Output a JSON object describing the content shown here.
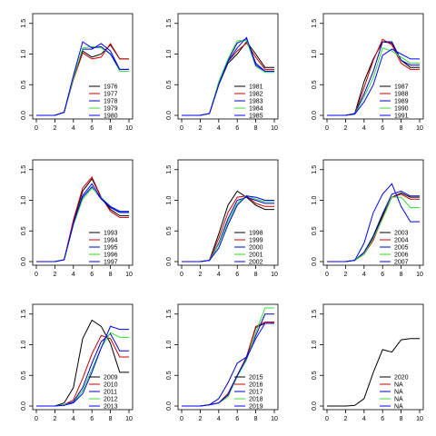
{
  "chart_data": {
    "type": "line",
    "layout": "3x3 grid of small-multiple line charts",
    "colors": [
      "#000000",
      "#cc0000",
      "#0000cc",
      "#33dd33",
      "#0000ff"
    ],
    "x_ticks": [
      "0",
      "2",
      "4",
      "6",
      "8",
      "10"
    ],
    "y_ticks": [
      "0.0",
      "0.5",
      "1.0",
      "1.5"
    ],
    "xlim": [
      0,
      10
    ],
    "ylim": [
      0,
      1.6
    ],
    "legend_position": "bottom-right",
    "x": [
      0,
      1,
      2,
      3,
      4,
      5,
      6,
      7,
      8,
      9,
      10
    ],
    "panels": [
      {
        "series": [
          {
            "name": "1976",
            "color": "#000000",
            "values": [
              0,
              0,
              0,
              0.05,
              0.6,
              1.05,
              0.95,
              1.0,
              1.15,
              0.92,
              0.92
            ]
          },
          {
            "name": "1977",
            "color": "#cc0000",
            "values": [
              0,
              0,
              0,
              0.05,
              0.58,
              1.02,
              0.92,
              0.95,
              1.17,
              0.92,
              0.92
            ]
          },
          {
            "name": "1978",
            "color": "#0000cc",
            "values": [
              0,
              0,
              0,
              0.05,
              0.62,
              1.08,
              1.08,
              1.17,
              1.05,
              0.75,
              0.75
            ]
          },
          {
            "name": "1979",
            "color": "#33dd33",
            "values": [
              0,
              0,
              0,
              0.05,
              0.6,
              1.1,
              1.12,
              1.1,
              1.0,
              0.72,
              0.72
            ]
          },
          {
            "name": "1980",
            "color": "#0000ff",
            "values": [
              0,
              0,
              0,
              0.05,
              0.65,
              1.2,
              1.1,
              1.12,
              1.0,
              0.75,
              0.75
            ]
          }
        ]
      },
      {
        "series": [
          {
            "name": "1981",
            "color": "#000000",
            "values": [
              0,
              0,
              0,
              0.03,
              0.5,
              0.85,
              1.0,
              1.2,
              1.0,
              0.78,
              0.78
            ]
          },
          {
            "name": "1982",
            "color": "#cc0000",
            "values": [
              0,
              0,
              0,
              0.03,
              0.5,
              0.88,
              1.05,
              1.18,
              0.95,
              0.75,
              0.75
            ]
          },
          {
            "name": "1983",
            "color": "#0000cc",
            "values": [
              0,
              0,
              0,
              0.03,
              0.52,
              0.9,
              1.18,
              1.25,
              0.85,
              0.72,
              0.72
            ]
          },
          {
            "name": "1984",
            "color": "#33dd33",
            "values": [
              0,
              0,
              0,
              0.03,
              0.55,
              0.92,
              1.22,
              1.22,
              0.8,
              0.7,
              0.7
            ]
          },
          {
            "name": "1985",
            "color": "#0000ff",
            "values": [
              0,
              0,
              0,
              0.03,
              0.5,
              0.88,
              1.1,
              1.27,
              0.82,
              0.72,
              0.72
            ]
          }
        ]
      },
      {
        "series": [
          {
            "name": "1987",
            "color": "#000000",
            "values": [
              0,
              0,
              0,
              0.03,
              0.55,
              0.92,
              1.2,
              1.18,
              0.9,
              0.78,
              0.78
            ]
          },
          {
            "name": "1988",
            "color": "#cc0000",
            "values": [
              0,
              0,
              0,
              0.03,
              0.45,
              0.9,
              1.24,
              1.15,
              0.85,
              0.75,
              0.75
            ]
          },
          {
            "name": "1989",
            "color": "#0000cc",
            "values": [
              0,
              0,
              0,
              0.03,
              0.35,
              0.72,
              1.2,
              1.2,
              0.9,
              0.82,
              0.82
            ]
          },
          {
            "name": "1990",
            "color": "#33dd33",
            "values": [
              0,
              0,
              0,
              0.02,
              0.3,
              0.62,
              1.1,
              1.05,
              0.95,
              0.85,
              0.85
            ]
          },
          {
            "name": "1991",
            "color": "#0000ff",
            "values": [
              0,
              0,
              0,
              0.02,
              0.22,
              0.5,
              0.98,
              1.08,
              1.0,
              0.92,
              0.92
            ]
          }
        ]
      },
      {
        "series": [
          {
            "name": "1993",
            "color": "#000000",
            "values": [
              0,
              0,
              0,
              0.03,
              0.65,
              1.15,
              1.35,
              1.05,
              0.85,
              0.75,
              0.75
            ]
          },
          {
            "name": "1994",
            "color": "#cc0000",
            "values": [
              0,
              0,
              0,
              0.03,
              0.68,
              1.2,
              1.38,
              1.05,
              0.82,
              0.72,
              0.72
            ]
          },
          {
            "name": "1995",
            "color": "#0000cc",
            "values": [
              0,
              0,
              0,
              0.03,
              0.6,
              1.05,
              1.22,
              1.02,
              0.88,
              0.8,
              0.8
            ]
          },
          {
            "name": "1996",
            "color": "#33dd33",
            "values": [
              0,
              0,
              0,
              0.03,
              0.6,
              1.02,
              1.2,
              1.05,
              0.9,
              0.82,
              0.82
            ]
          },
          {
            "name": "1997",
            "color": "#0000ff",
            "values": [
              0,
              0,
              0,
              0.03,
              0.62,
              1.08,
              1.27,
              1.03,
              0.9,
              0.82,
              0.82
            ]
          }
        ]
      },
      {
        "series": [
          {
            "name": "1998",
            "color": "#000000",
            "values": [
              0,
              0,
              0,
              0.02,
              0.45,
              0.92,
              1.15,
              1.05,
              0.92,
              0.85,
              0.85
            ]
          },
          {
            "name": "1999",
            "color": "#cc0000",
            "values": [
              0,
              0,
              0,
              0.02,
              0.38,
              0.8,
              1.05,
              1.07,
              0.95,
              0.9,
              0.9
            ]
          },
          {
            "name": "2000",
            "color": "#0000cc",
            "values": [
              0,
              0,
              0,
              0.02,
              0.3,
              0.7,
              1.0,
              1.05,
              1.0,
              0.95,
              0.95
            ]
          },
          {
            "name": "2001",
            "color": "#33dd33",
            "values": [
              0,
              0,
              0,
              0.02,
              0.28,
              0.65,
              0.95,
              1.08,
              1.02,
              0.98,
              0.98
            ]
          },
          {
            "name": "2002",
            "color": "#0000ff",
            "values": [
              0,
              0,
              0,
              0.02,
              0.22,
              0.6,
              0.92,
              1.07,
              1.05,
              1.0,
              1.0
            ]
          }
        ]
      },
      {
        "series": [
          {
            "name": "2003",
            "color": "#000000",
            "values": [
              0,
              0,
              0,
              0.02,
              0.15,
              0.4,
              0.75,
              1.05,
              1.12,
              1.05,
              1.05
            ]
          },
          {
            "name": "2004",
            "color": "#cc0000",
            "values": [
              0,
              0,
              0,
              0.02,
              0.12,
              0.35,
              0.72,
              1.05,
              1.1,
              1.02,
              1.02
            ]
          },
          {
            "name": "2005",
            "color": "#0000cc",
            "values": [
              0,
              0,
              0,
              0.02,
              0.15,
              0.42,
              0.78,
              1.1,
              1.15,
              1.07,
              1.07
            ]
          },
          {
            "name": "2006",
            "color": "#33dd33",
            "values": [
              0,
              0,
              0,
              0.02,
              0.12,
              0.38,
              0.7,
              1.05,
              1.05,
              0.88,
              0.88
            ]
          },
          {
            "name": "2007",
            "color": "#0000ff",
            "values": [
              0,
              0,
              0,
              0.02,
              0.3,
              0.8,
              1.1,
              1.27,
              0.9,
              0.65,
              0.65
            ]
          }
        ]
      },
      {
        "series": [
          {
            "name": "2009",
            "color": "#000000",
            "values": [
              0,
              0,
              0,
              0.05,
              0.3,
              1.1,
              1.4,
              1.3,
              1.02,
              0.55,
              0.55
            ]
          },
          {
            "name": "2010",
            "color": "#cc0000",
            "values": [
              0,
              0,
              0,
              0.02,
              0.1,
              0.45,
              0.85,
              1.15,
              1.1,
              0.8,
              0.8
            ]
          },
          {
            "name": "2011",
            "color": "#0000cc",
            "values": [
              0,
              0,
              0,
              0.02,
              0.07,
              0.3,
              0.7,
              1.05,
              1.18,
              0.9,
              0.9
            ]
          },
          {
            "name": "2012",
            "color": "#33dd33",
            "values": [
              0,
              0,
              0,
              0.02,
              0.05,
              0.25,
              0.6,
              0.95,
              1.2,
              1.12,
              1.12
            ]
          },
          {
            "name": "2013",
            "color": "#0000ff",
            "values": [
              0,
              0,
              0,
              0.01,
              0.05,
              0.2,
              0.55,
              0.95,
              1.3,
              1.25,
              1.25
            ]
          }
        ]
      },
      {
        "series": [
          {
            "name": "2015",
            "color": "#000000",
            "values": [
              0,
              0,
              0,
              0.02,
              0.05,
              0.2,
              0.5,
              0.8,
              1.28,
              1.35,
              1.35
            ]
          },
          {
            "name": "2016",
            "color": "#cc0000",
            "values": [
              0,
              0,
              0,
              0.02,
              0.05,
              0.2,
              0.5,
              0.8,
              1.3,
              1.37,
              1.37
            ]
          },
          {
            "name": "2017",
            "color": "#0000cc",
            "values": [
              0,
              0,
              0,
              0.02,
              0.12,
              0.38,
              0.7,
              0.8,
              1.15,
              1.5,
              1.5
            ]
          },
          {
            "name": "2018",
            "color": "#33dd33",
            "values": [
              0,
              0,
              0,
              0.02,
              0.05,
              0.15,
              0.48,
              0.75,
              1.2,
              1.6,
              1.6
            ]
          },
          {
            "name": "2019",
            "color": "#0000ff",
            "values": [
              0,
              0,
              0,
              0.02,
              0.05,
              0.18,
              0.5,
              0.78,
              1.1,
              1.35,
              1.35
            ]
          }
        ]
      },
      {
        "series": [
          {
            "name": "2020",
            "color": "#000000",
            "values": [
              0,
              0,
              0,
              0.01,
              0.12,
              0.55,
              0.92,
              0.88,
              1.08,
              1.1,
              1.1
            ]
          },
          {
            "name": "NA",
            "color": "#cc0000",
            "values": []
          },
          {
            "name": "NA",
            "color": "#0000cc",
            "values": []
          },
          {
            "name": "NA",
            "color": "#33dd33",
            "values": []
          },
          {
            "name": "NA",
            "color": "#0000ff",
            "values": []
          }
        ]
      }
    ]
  }
}
